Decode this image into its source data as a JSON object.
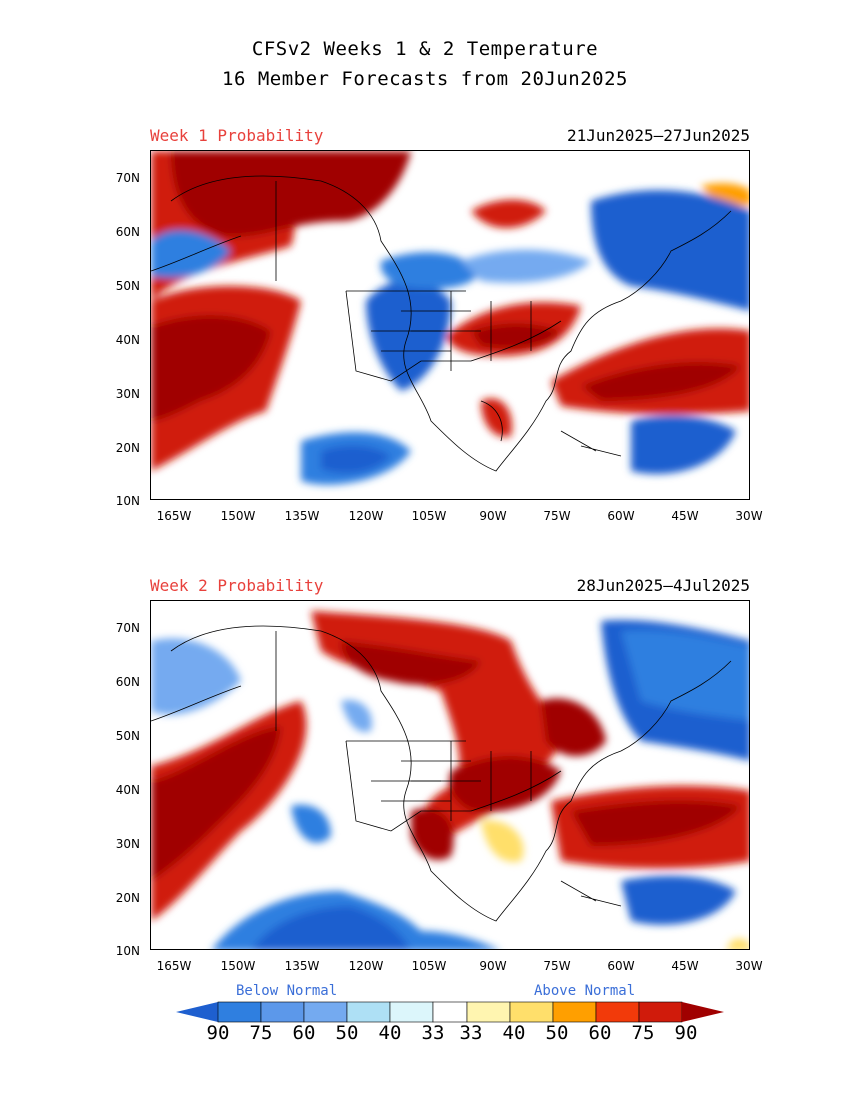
{
  "header": {
    "title_line1": "CFSv2 Weeks 1 & 2 Temperature",
    "title_line2": "16 Member Forecasts from 20Jun2025"
  },
  "panels": [
    {
      "label": "Week 1 Probability",
      "dates": "21Jun2025—27Jun2025"
    },
    {
      "label": "Week 2 Probability",
      "dates": "28Jun2025—4Jul2025"
    }
  ],
  "axes": {
    "lat_labels": [
      "70N",
      "60N",
      "50N",
      "40N",
      "30N",
      "20N",
      "10N"
    ],
    "lon_labels": [
      "165W",
      "150W",
      "135W",
      "120W",
      "105W",
      "90W",
      "75W",
      "60W",
      "45W",
      "30W"
    ]
  },
  "legend": {
    "below_label": "Below Normal",
    "above_label": "Above Normal",
    "numbers": [
      "90",
      "75",
      "60",
      "50",
      "40",
      "33",
      "33",
      "40",
      "50",
      "60",
      "75",
      "90"
    ],
    "colors": {
      "below": [
        "#1e5fcf",
        "#2f7fe0",
        "#74aaf0",
        "#aee0f5",
        "#dcf6fb"
      ],
      "neutral": "#ffffff",
      "above": [
        "#fff5b0",
        "#ffdf6b",
        "#ff9f00",
        "#f23a0a",
        "#d01b0b",
        "#a00000"
      ]
    }
  }
}
